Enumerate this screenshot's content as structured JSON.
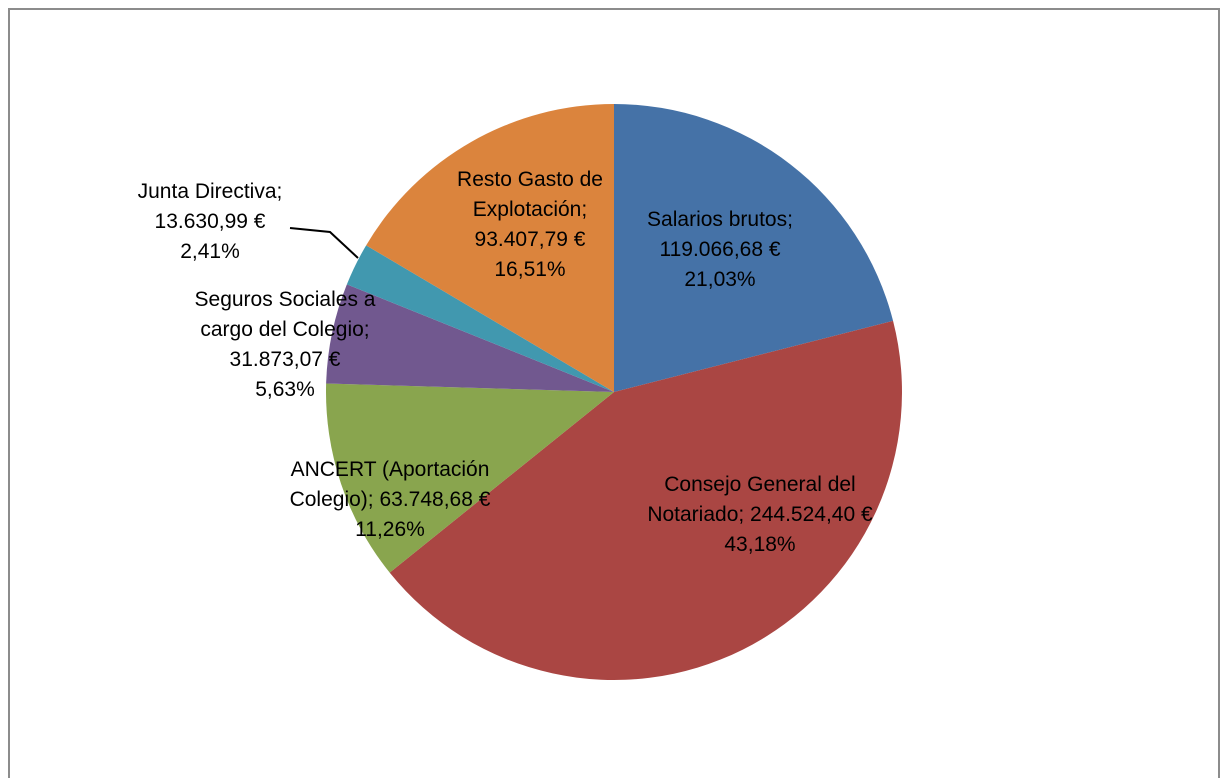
{
  "chart_data": {
    "type": "pie",
    "categories": [
      "Salarios brutos;",
      "Consejo General del Notariado;",
      "ANCERT (Aportación Colegio);",
      "Seguros Sociales a cargo del Colegio;",
      "Junta Directiva;",
      "Resto Gasto de Explotación;"
    ],
    "values": [
      119066.68,
      244524.4,
      63748.68,
      31873.07,
      13630.99,
      93407.79
    ],
    "value_labels": [
      "119.066,68 €",
      "244.524,40 €",
      "63.748,68 €",
      "31.873,07 €",
      "13.630,99 €",
      "93.407,79 €"
    ],
    "percents": [
      21.03,
      43.18,
      11.26,
      5.63,
      2.41,
      16.51
    ],
    "percent_labels": [
      "21,03%",
      "43,18%",
      "11,26%",
      "5,63%",
      "2,41%",
      "16,51%"
    ],
    "colors": [
      "#4572a7",
      "#aa4643",
      "#89a54e",
      "#71588f",
      "#4198af",
      "#db843d"
    ]
  }
}
